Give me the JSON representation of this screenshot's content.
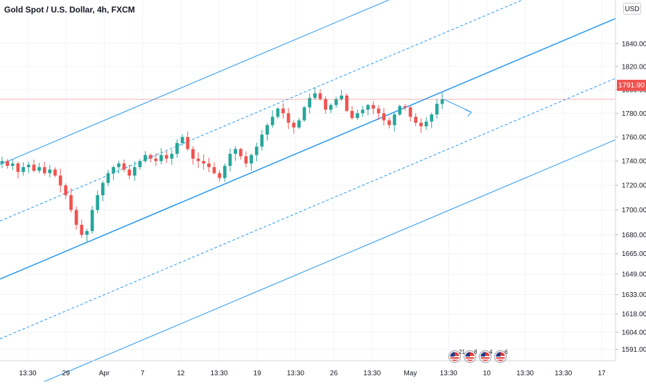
{
  "header": {
    "title": "Gold Spot / U.S. Dollar, 4h, FXCM",
    "currency": "USD"
  },
  "last_price": {
    "label": "1791.90",
    "value": 1791.9,
    "color": "#ef5350"
  },
  "colors": {
    "up": "#26a69a",
    "down": "#ef5350",
    "channel": "#2196f3",
    "grid": "#f0f3fa"
  },
  "events": [
    {
      "icon": "us-flag-icon",
      "count": "21"
    },
    {
      "icon": "us-flag-icon",
      "count": "8"
    },
    {
      "icon": "us-flag-icon",
      "count": "4"
    },
    {
      "icon": "us-flag-icon",
      "count": "6"
    }
  ],
  "chart_data": {
    "type": "candlestick",
    "symbol": "Gold Spot / U.S. Dollar",
    "timeframe": "4h",
    "source": "FXCM",
    "y_scale": "log",
    "ylim": [
      1585,
      1860
    ],
    "y_ticks": [
      "1840.00",
      "1820.00",
      "1800.00",
      "1780.00",
      "1760.00",
      "1740.00",
      "1720.00",
      "1700.00",
      "1680.00",
      "1665.00",
      "1649.00",
      "1633.00",
      "1618.00",
      "1604.00",
      "1591.00"
    ],
    "x_ticks": [
      "13:30",
      "29",
      "Apr",
      "7",
      "12",
      "13:30",
      "19",
      "13:30",
      "26",
      "13:30",
      "May",
      "13:30",
      "10",
      "13:30",
      "13:30",
      "17"
    ],
    "last_close": 1791.9,
    "close_path": [
      1740,
      1736,
      1738,
      1731,
      1735,
      1737,
      1732,
      1735,
      1730,
      1733,
      1728,
      1720,
      1712,
      1700,
      1688,
      1680,
      1683,
      1700,
      1712,
      1722,
      1730,
      1735,
      1738,
      1733,
      1728,
      1735,
      1740,
      1745,
      1742,
      1740,
      1745,
      1742,
      1746,
      1755,
      1760,
      1750,
      1742,
      1740,
      1738,
      1735,
      1730,
      1726,
      1736,
      1746,
      1750,
      1744,
      1738,
      1745,
      1752,
      1762,
      1770,
      1777,
      1784,
      1780,
      1772,
      1768,
      1774,
      1785,
      1793,
      1797,
      1792,
      1783,
      1787,
      1792,
      1795,
      1782,
      1776,
      1780,
      1783,
      1787,
      1784,
      1780,
      1774,
      1770,
      1779,
      1786,
      1785,
      1777,
      1772,
      1769,
      1773,
      1779,
      1788,
      1791.9
    ],
    "regression_channel": {
      "center": {
        "start": 1645,
        "end": 1862
      },
      "offsets_pct": [
        -5.6,
        -2.8,
        0,
        2.8,
        5.6
      ],
      "projection": {
        "from": 1791.9,
        "to": 1781
      }
    }
  }
}
